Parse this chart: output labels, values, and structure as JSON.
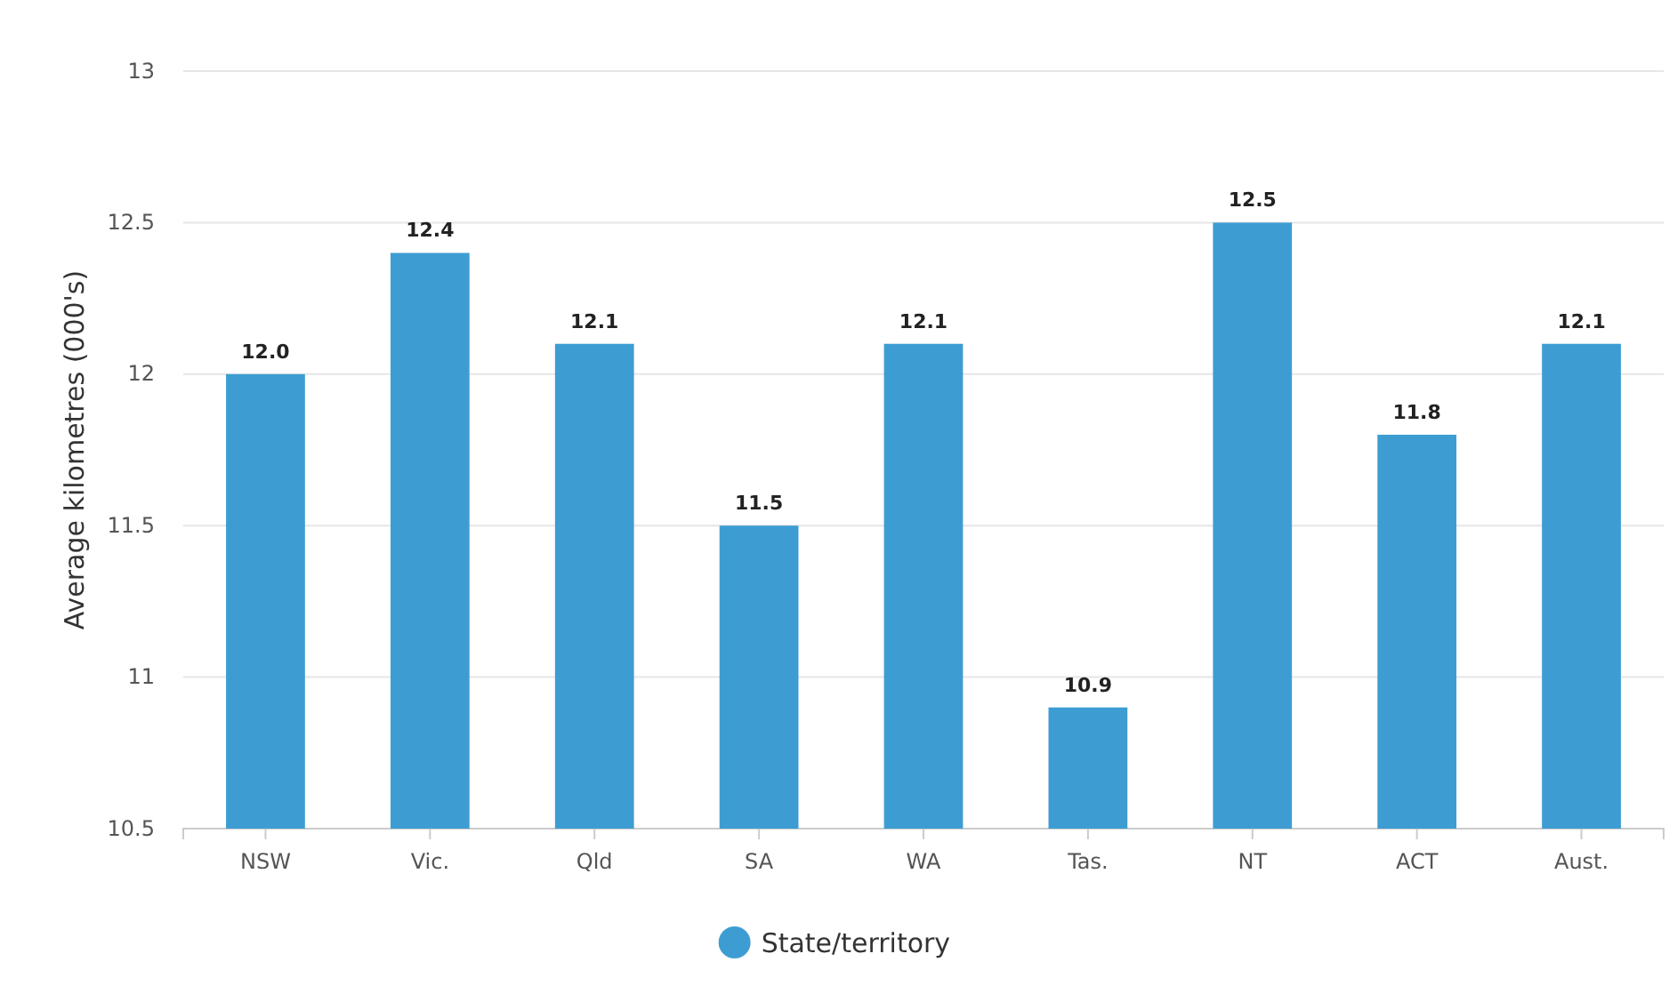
{
  "chart_data": {
    "type": "bar",
    "ylabel": "Average kilometres (000's)",
    "categories": [
      "NSW",
      "Vic.",
      "Qld",
      "SA",
      "WA",
      "Tas.",
      "NT",
      "ACT",
      "Aust."
    ],
    "series": [
      {
        "name": "State/territory",
        "color": "#3d9dd3",
        "values": [
          12.0,
          12.4,
          12.1,
          11.5,
          12.1,
          10.9,
          12.5,
          11.8,
          12.1
        ],
        "value_labels": [
          "12.0",
          "12.4",
          "12.1",
          "11.5",
          "12.1",
          "10.9",
          "12.5",
          "11.8",
          "12.1"
        ]
      }
    ],
    "ylim": [
      10.5,
      13
    ],
    "yticks": [
      10.5,
      11,
      11.5,
      12,
      12.5,
      13
    ],
    "grid": "y",
    "legend": "bottom"
  }
}
